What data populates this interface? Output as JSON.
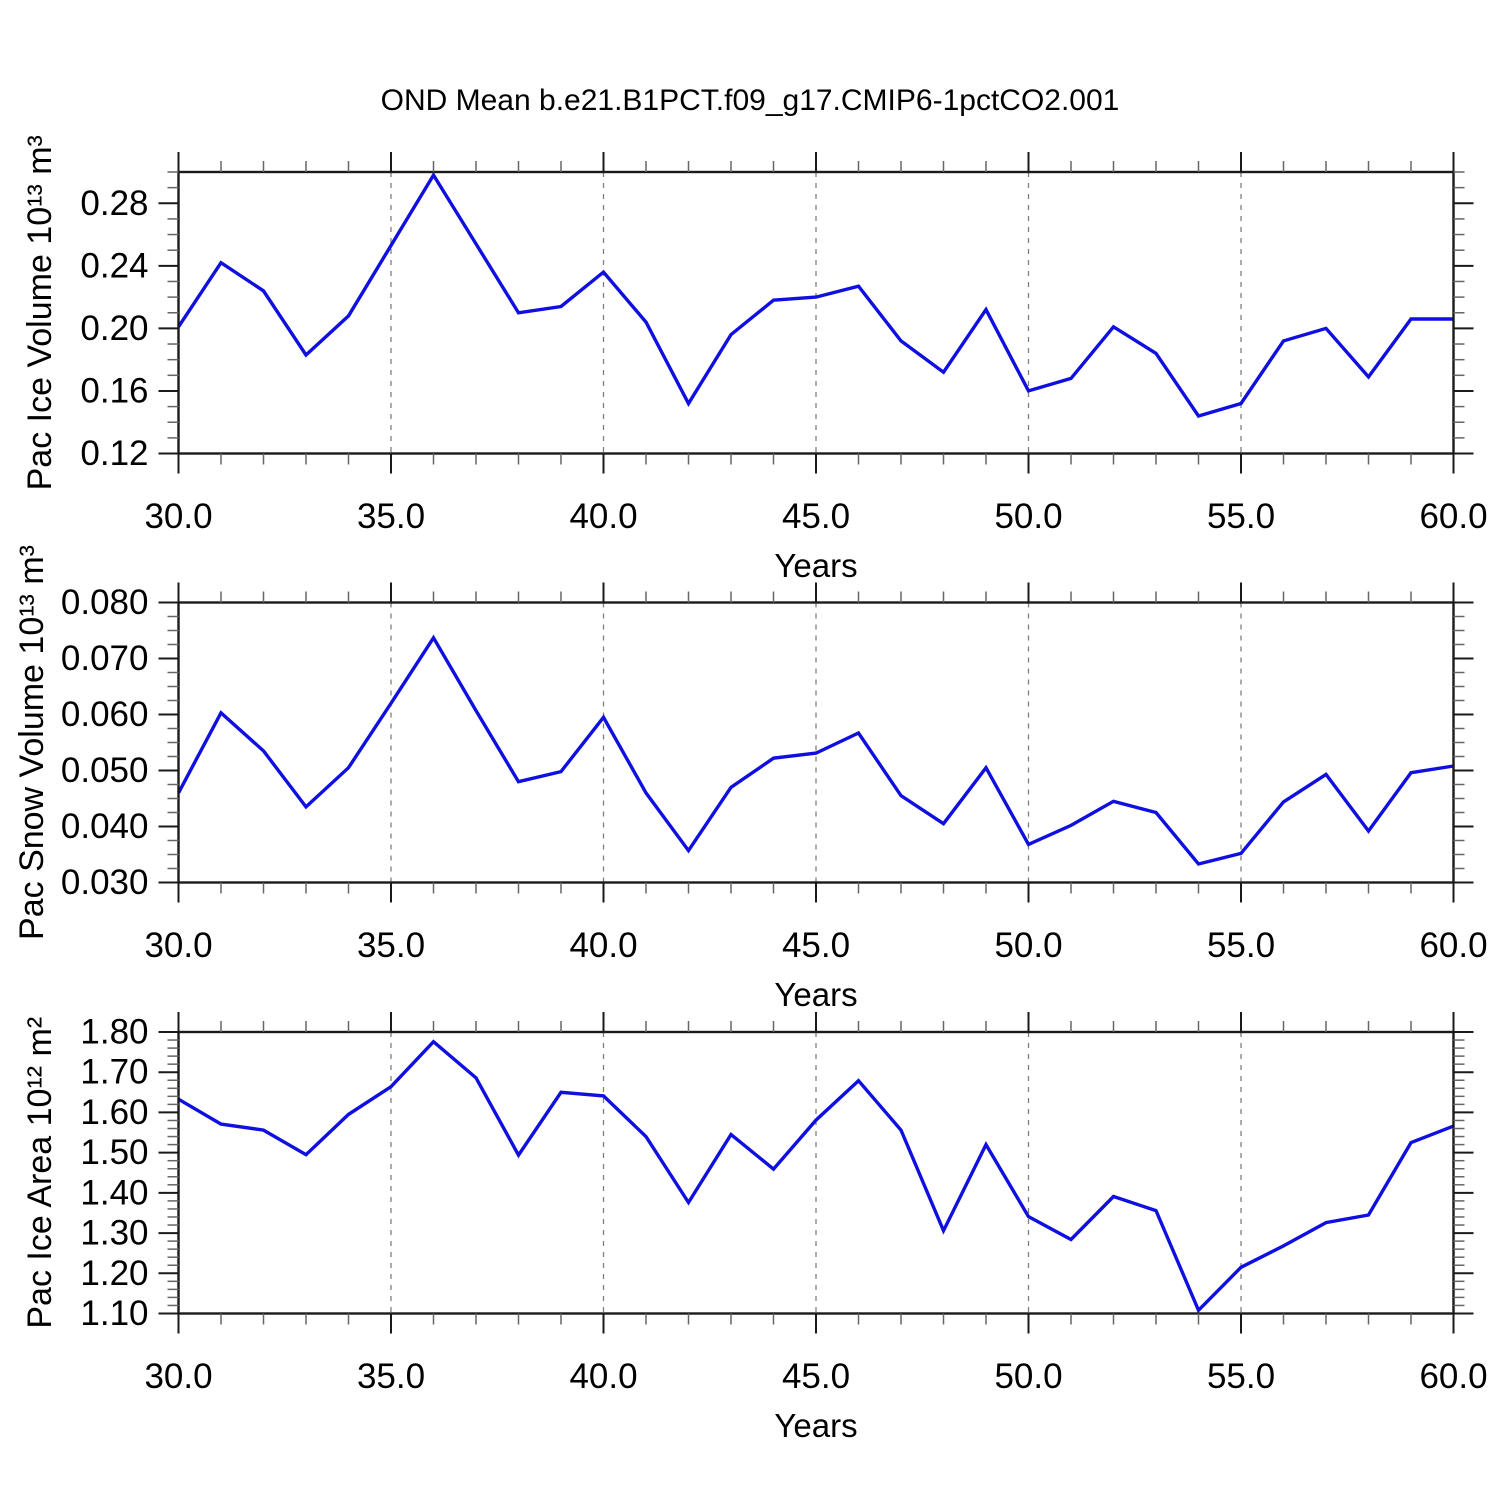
{
  "title": "OND Mean b.e21.B1PCT.f09_g17.CMIP6-1pctCO2.001",
  "colors": {
    "line": "#0f0fe0",
    "frame": "#1a1a1a",
    "major_tick": "#1a1a1a",
    "minor_tick": "#666666",
    "grid": "#808080",
    "text": "#000000"
  },
  "chart_data": [
    {
      "type": "line",
      "name": "pac-ice-volume",
      "ylabel": "Pac Ice Volume 10¹³ m³",
      "xlabel": "Years",
      "xlim": [
        30,
        60
      ],
      "x_major_ticks": [
        30,
        35,
        40,
        45,
        50,
        55,
        60
      ],
      "x_tick_labels": [
        "30.0",
        "35.0",
        "40.0",
        "45.0",
        "50.0",
        "55.0",
        "60.0"
      ],
      "x_minor_step": 1,
      "grid_x": [
        35,
        40,
        45,
        50,
        55
      ],
      "ylim": [
        0.12,
        0.3
      ],
      "y_major_ticks": [
        0.12,
        0.16,
        0.2,
        0.24,
        0.28
      ],
      "y_tick_labels": [
        "0.12",
        "0.16",
        "0.20",
        "0.24",
        "0.28"
      ],
      "y_minor_step": 0.01,
      "x": [
        30,
        31,
        32,
        33,
        34,
        35,
        36,
        37,
        38,
        39,
        40,
        41,
        42,
        43,
        44,
        45,
        46,
        47,
        48,
        49,
        50,
        51,
        52,
        53,
        54,
        55,
        56,
        57,
        58,
        59,
        60
      ],
      "values": [
        0.201,
        0.242,
        0.224,
        0.183,
        0.208,
        0.253,
        0.298,
        0.254,
        0.21,
        0.214,
        0.236,
        0.204,
        0.152,
        0.196,
        0.218,
        0.22,
        0.227,
        0.192,
        0.172,
        0.212,
        0.16,
        0.168,
        0.201,
        0.184,
        0.144,
        0.152,
        0.192,
        0.2,
        0.169,
        0.206,
        0.206
      ]
    },
    {
      "type": "line",
      "name": "pac-snow-volume",
      "ylabel": "Pac Snow Volume 10¹³ m³",
      "xlabel": "Years",
      "xlim": [
        30,
        60
      ],
      "x_major_ticks": [
        30,
        35,
        40,
        45,
        50,
        55,
        60
      ],
      "x_tick_labels": [
        "30.0",
        "35.0",
        "40.0",
        "45.0",
        "50.0",
        "55.0",
        "60.0"
      ],
      "x_minor_step": 1,
      "grid_x": [
        35,
        40,
        45,
        50,
        55
      ],
      "ylim": [
        0.03,
        0.08
      ],
      "y_major_ticks": [
        0.03,
        0.04,
        0.05,
        0.06,
        0.07,
        0.08
      ],
      "y_tick_labels": [
        "0.030",
        "0.040",
        "0.050",
        "0.060",
        "0.070",
        "0.080"
      ],
      "y_minor_step": 0.0025,
      "x": [
        30,
        31,
        32,
        33,
        34,
        35,
        36,
        37,
        38,
        39,
        40,
        41,
        42,
        43,
        44,
        45,
        46,
        47,
        48,
        49,
        50,
        51,
        52,
        53,
        54,
        55,
        56,
        57,
        58,
        59,
        60
      ],
      "values": [
        0.046,
        0.0603,
        0.0535,
        0.0435,
        0.0505,
        0.062,
        0.0737,
        0.0607,
        0.048,
        0.0498,
        0.0595,
        0.046,
        0.0357,
        0.047,
        0.0522,
        0.0531,
        0.0567,
        0.0455,
        0.0405,
        0.0505,
        0.0368,
        0.0402,
        0.0445,
        0.0425,
        0.0333,
        0.0352,
        0.0444,
        0.0493,
        0.0392,
        0.0496,
        0.0508
      ]
    },
    {
      "type": "line",
      "name": "pac-ice-area",
      "ylabel": "Pac Ice Area 10¹² m²",
      "xlabel": "Years",
      "xlim": [
        30,
        60
      ],
      "x_major_ticks": [
        30,
        35,
        40,
        45,
        50,
        55,
        60
      ],
      "x_tick_labels": [
        "30.0",
        "35.0",
        "40.0",
        "45.0",
        "50.0",
        "55.0",
        "60.0"
      ],
      "x_minor_step": 1,
      "grid_x": [
        35,
        40,
        45,
        50,
        55
      ],
      "ylim": [
        1.1,
        1.8
      ],
      "y_major_ticks": [
        1.1,
        1.2,
        1.3,
        1.4,
        1.5,
        1.6,
        1.7,
        1.8
      ],
      "y_tick_labels": [
        "1.10",
        "1.20",
        "1.30",
        "1.40",
        "1.50",
        "1.60",
        "1.70",
        "1.80"
      ],
      "y_minor_step": 0.02,
      "x": [
        30,
        31,
        32,
        33,
        34,
        35,
        36,
        37,
        38,
        39,
        40,
        41,
        42,
        43,
        44,
        45,
        46,
        47,
        48,
        49,
        50,
        51,
        52,
        53,
        54,
        55,
        56,
        57,
        58,
        59,
        60
      ],
      "values": [
        1.633,
        1.571,
        1.556,
        1.495,
        1.595,
        1.664,
        1.776,
        1.686,
        1.494,
        1.65,
        1.641,
        1.54,
        1.376,
        1.545,
        1.459,
        1.581,
        1.679,
        1.556,
        1.306,
        1.52,
        1.341,
        1.284,
        1.391,
        1.356,
        1.108,
        1.215,
        1.268,
        1.326,
        1.345,
        1.525,
        1.566
      ]
    }
  ]
}
